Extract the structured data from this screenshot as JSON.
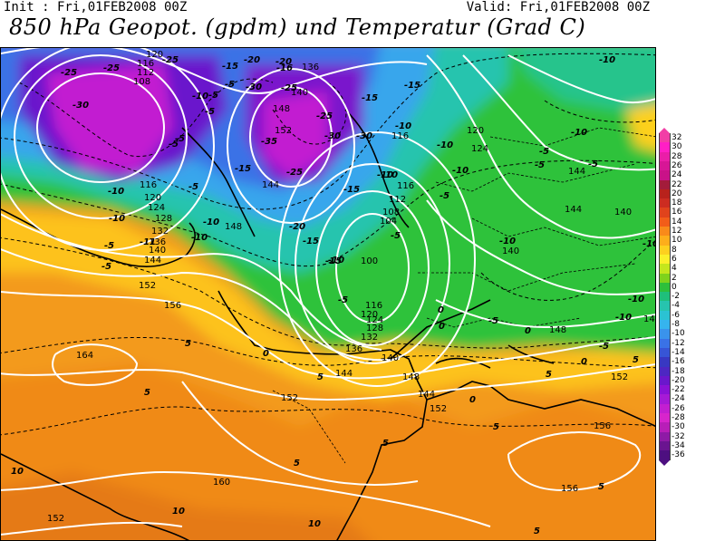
{
  "header": {
    "init": "Init : Fri,01FEB2008 00Z",
    "valid": "Valid: Fri,01FEB2008 00Z",
    "title": "850 hPa Geopot. (gpdm) und Temperatur (Grad C)"
  },
  "colorbar": {
    "values": [
      "32",
      "30",
      "28",
      "26",
      "24",
      "22",
      "20",
      "18",
      "16",
      "14",
      "12",
      "10",
      "8",
      "6",
      "4",
      "2",
      "0",
      "-2",
      "-4",
      "-6",
      "-8",
      "-10",
      "-12",
      "-14",
      "-16",
      "-18",
      "-20",
      "-22",
      "-24",
      "-26",
      "-28",
      "-30",
      "-32",
      "-34",
      "-36"
    ],
    "colors": [
      "#f13ea6",
      "#ff1fc5",
      "#ea1ea8",
      "#d71696",
      "#c91288",
      "#a31c3b",
      "#b8221c",
      "#cc2c21",
      "#e0431c",
      "#f25d19",
      "#f98a1a",
      "#fdae1b",
      "#fdd01f",
      "#fbf02a",
      "#c4e61d",
      "#7fd21c",
      "#2ebf3b",
      "#1fbf7b",
      "#27c4ae",
      "#2bc2d3",
      "#36b4ee",
      "#3a93ec",
      "#3a72e6",
      "#3755d6",
      "#3838c2",
      "#4d27c2",
      "#6a17cc",
      "#8a12d6",
      "#a61ad6",
      "#c21fd1",
      "#d725cc",
      "#b81eb8",
      "#8e1aa6",
      "#6a1490",
      "#4d0f80"
    ]
  },
  "map": {
    "geopotential_labels": [
      {
        "text": "120"
      },
      {
        "text": "116"
      },
      {
        "text": "112"
      },
      {
        "text": "108"
      },
      {
        "text": "136"
      },
      {
        "text": "140"
      },
      {
        "text": "148"
      },
      {
        "text": "152"
      },
      {
        "text": "144"
      },
      {
        "text": "116"
      },
      {
        "text": "120"
      },
      {
        "text": "124"
      },
      {
        "text": "128"
      },
      {
        "text": "132"
      },
      {
        "text": "136"
      },
      {
        "text": "140"
      },
      {
        "text": "144"
      },
      {
        "text": "148"
      },
      {
        "text": "152"
      },
      {
        "text": "156"
      },
      {
        "text": "164"
      },
      {
        "text": "144"
      },
      {
        "text": "152"
      },
      {
        "text": "160"
      },
      {
        "text": "152"
      },
      {
        "text": "116"
      },
      {
        "text": "112"
      },
      {
        "text": "108"
      },
      {
        "text": "104"
      },
      {
        "text": "100"
      },
      {
        "text": "116"
      },
      {
        "text": "120"
      },
      {
        "text": "124"
      },
      {
        "text": "128"
      },
      {
        "text": "132"
      },
      {
        "text": "136"
      },
      {
        "text": "140"
      },
      {
        "text": "144"
      },
      {
        "text": "148"
      },
      {
        "text": "152"
      },
      {
        "text": "120"
      },
      {
        "text": "124"
      },
      {
        "text": "144"
      },
      {
        "text": "140"
      },
      {
        "text": "140"
      },
      {
        "text": "144"
      },
      {
        "text": "148"
      },
      {
        "text": "148"
      },
      {
        "text": "152"
      },
      {
        "text": "156"
      },
      {
        "text": "156"
      },
      {
        "text": "116"
      }
    ],
    "temperature_labels": [
      {
        "text": "-25"
      },
      {
        "text": "-25"
      },
      {
        "text": "-30"
      },
      {
        "text": "-25"
      },
      {
        "text": "-15"
      },
      {
        "text": "-20"
      },
      {
        "text": "-20"
      },
      {
        "text": "-16"
      },
      {
        "text": "-5"
      },
      {
        "text": "-10"
      },
      {
        "text": "-5"
      },
      {
        "text": "-5"
      },
      {
        "text": "-30"
      },
      {
        "text": "-25"
      },
      {
        "text": "-35"
      },
      {
        "text": "-30"
      },
      {
        "text": "-30"
      },
      {
        "text": "-15"
      },
      {
        "text": "-25"
      },
      {
        "text": "-15"
      },
      {
        "text": "-10"
      },
      {
        "text": "-5"
      },
      {
        "text": "-25"
      },
      {
        "text": "-10"
      },
      {
        "text": "-15"
      },
      {
        "text": "-11"
      },
      {
        "text": "-5"
      },
      {
        "text": "-10"
      },
      {
        "text": "-10"
      },
      {
        "text": "-20"
      },
      {
        "text": "-15"
      },
      {
        "text": "-10"
      },
      {
        "text": "-5"
      },
      {
        "text": "-5"
      },
      {
        "text": "-5"
      },
      {
        "text": "-10"
      },
      {
        "text": "-10"
      },
      {
        "text": "-10"
      },
      {
        "text": "-10"
      },
      {
        "text": "-5"
      },
      {
        "text": "-5"
      },
      {
        "text": "-10"
      },
      {
        "text": "-5"
      },
      {
        "text": "-5"
      },
      {
        "text": "-10"
      },
      {
        "text": "-10"
      },
      {
        "text": "-5"
      },
      {
        "text": "-15"
      },
      {
        "text": "-15"
      },
      {
        "text": "-5"
      },
      {
        "text": "-10"
      },
      {
        "text": "-10"
      },
      {
        "text": "-10"
      },
      {
        "text": "-5"
      },
      {
        "text": "-10"
      },
      {
        "text": "-5"
      },
      {
        "text": "0"
      },
      {
        "text": "0"
      },
      {
        "text": "0"
      },
      {
        "text": "0"
      },
      {
        "text": "5"
      },
      {
        "text": "5"
      },
      {
        "text": "5"
      },
      {
        "text": "5"
      },
      {
        "text": "5"
      },
      {
        "text": "5"
      },
      {
        "text": "5"
      },
      {
        "text": "10"
      },
      {
        "text": "10"
      },
      {
        "text": "10"
      },
      {
        "text": "5"
      },
      {
        "text": "5"
      },
      {
        "text": "0"
      },
      {
        "text": "0"
      },
      {
        "text": "5"
      }
    ]
  }
}
